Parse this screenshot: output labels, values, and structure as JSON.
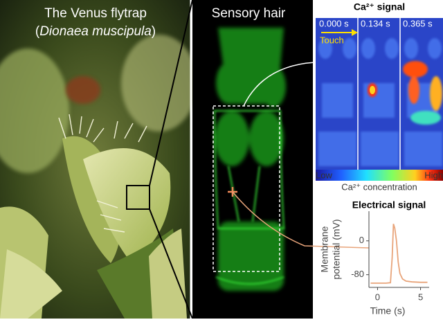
{
  "photo": {
    "title": "The Venus flytrap",
    "open_paren": "(",
    "species": "Dionaea muscipula",
    "close_paren": ")"
  },
  "microscopy": {
    "title": "Sensory hair"
  },
  "calcium": {
    "title": "Ca²⁺ signal",
    "timestamps": [
      "0.000 s",
      "0.134 s",
      "0.365 s"
    ],
    "stimulus": "Touch",
    "colorbar_low": "Low",
    "colorbar_high": "High",
    "colorbar_label": "Ca²⁺ concentration"
  },
  "chart_data": {
    "type": "line",
    "title": "Electrical signal",
    "ylabel_lines": [
      "Membrane",
      "potential (mV)"
    ],
    "xlabel": "Time (s)",
    "x": [
      -0.8,
      1.0,
      1.5,
      1.7,
      1.85,
      2.0,
      2.2,
      2.4,
      2.6,
      2.9,
      3.3,
      4.0,
      5.0,
      5.8
    ],
    "values": [
      -100,
      -100,
      -99,
      -40,
      40,
      30,
      0,
      -50,
      -77,
      -90,
      -95,
      -97,
      -98,
      -98
    ],
    "color": "#e8a47a",
    "xlim": [
      -1,
      6
    ],
    "ylim": [
      -110,
      70
    ],
    "xticks": [
      0,
      5
    ],
    "yticks": [
      0,
      -80
    ]
  }
}
